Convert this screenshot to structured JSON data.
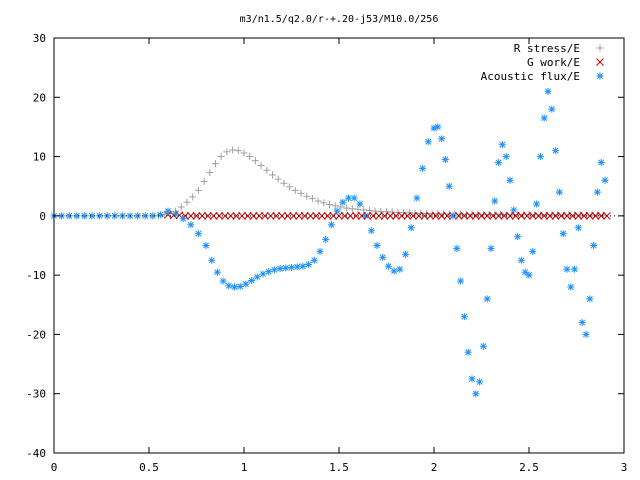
{
  "chart_data": {
    "type": "scatter",
    "title": "m3/n1.5/q2.0/r-+.20-j53/M10.0/256",
    "xlabel": "",
    "ylabel": "",
    "xlim": [
      0,
      3
    ],
    "ylim": [
      -40,
      30
    ],
    "x_ticks": [
      "0",
      "0.5",
      "1",
      "1.5",
      "2",
      "2.5",
      "3"
    ],
    "y_ticks": [
      "30",
      "20",
      "10",
      "0",
      "-10",
      "-20",
      "-30",
      "-40"
    ],
    "grid": false,
    "legend_position": "top-right",
    "series": [
      {
        "name": "R stress/E",
        "marker": "plus",
        "color": "#a0a0a0",
        "x": [
          0.55,
          0.58,
          0.61,
          0.64,
          0.67,
          0.7,
          0.73,
          0.76,
          0.79,
          0.82,
          0.85,
          0.88,
          0.91,
          0.94,
          0.97,
          1.0,
          1.03,
          1.06,
          1.09,
          1.12,
          1.15,
          1.18,
          1.21,
          1.24,
          1.27,
          1.3,
          1.33,
          1.36,
          1.39,
          1.42,
          1.45,
          1.48,
          1.51,
          1.54,
          1.57,
          1.6,
          1.63,
          1.66,
          1.69,
          1.72,
          1.75,
          1.78,
          1.81,
          1.84,
          1.87,
          1.9,
          1.93,
          1.96,
          1.99,
          2.02,
          2.05,
          2.08,
          2.11,
          2.14,
          2.17,
          2.2,
          2.23,
          2.26,
          2.29,
          2.32,
          2.35,
          2.38,
          2.41,
          2.44,
          2.47,
          2.5,
          2.53,
          2.56,
          2.59,
          2.62,
          2.65,
          2.68,
          2.71,
          2.74,
          2.77,
          2.8,
          2.83,
          2.86,
          2.89
        ],
        "y": [
          0.0,
          0.2,
          0.4,
          0.8,
          1.5,
          2.3,
          3.2,
          4.3,
          5.8,
          7.3,
          8.8,
          10.0,
          10.8,
          11.1,
          11.0,
          10.6,
          10.0,
          9.3,
          8.5,
          7.7,
          6.9,
          6.2,
          5.5,
          4.9,
          4.3,
          3.8,
          3.3,
          2.9,
          2.5,
          2.2,
          1.9,
          1.7,
          1.5,
          1.3,
          1.2,
          1.1,
          1.0,
          0.9,
          0.8,
          0.75,
          0.7,
          0.65,
          0.6,
          0.55,
          0.5,
          0.45,
          0.42,
          0.4,
          0.38,
          0.36,
          0.34,
          0.32,
          0.3,
          0.29,
          0.28,
          0.27,
          0.26,
          0.25,
          0.24,
          0.23,
          0.22,
          0.21,
          0.2,
          0.2,
          0.19,
          0.18,
          0.18,
          0.17,
          0.17,
          0.16,
          0.16,
          0.15,
          0.15,
          0.14,
          0.14,
          0.13,
          0.13,
          0.12,
          0.12
        ]
      },
      {
        "name": "G work/E",
        "marker": "cross",
        "color": "#cc0000",
        "x": [
          0.6,
          0.63,
          0.66,
          0.69,
          0.72,
          0.75,
          0.78,
          0.81,
          0.84,
          0.87,
          0.9,
          0.93,
          0.96,
          0.99,
          1.02,
          1.05,
          1.08,
          1.11,
          1.14,
          1.17,
          1.2,
          1.23,
          1.26,
          1.29,
          1.32,
          1.35,
          1.38,
          1.41,
          1.44,
          1.47,
          1.5,
          1.53,
          1.56,
          1.59,
          1.62,
          1.65,
          1.68,
          1.71,
          1.74,
          1.77,
          1.8,
          1.83,
          1.86,
          1.89,
          1.92,
          1.95,
          1.98,
          2.01,
          2.04,
          2.07,
          2.1,
          2.13,
          2.16,
          2.19,
          2.22,
          2.25,
          2.28,
          2.31,
          2.34,
          2.37,
          2.4,
          2.43,
          2.46,
          2.49,
          2.52,
          2.55,
          2.58,
          2.61,
          2.64,
          2.67,
          2.7,
          2.73,
          2.76,
          2.79,
          2.82,
          2.85,
          2.88,
          2.91
        ],
        "y": [
          0.2,
          0.1,
          0.1,
          0.0,
          0.0,
          0.0,
          0.0,
          0.0,
          0.0,
          0.0,
          0.0,
          0.0,
          0.0,
          0.0,
          0.0,
          0.0,
          0.0,
          0.0,
          0.0,
          0.0,
          0.0,
          0.0,
          0.0,
          0.0,
          0.0,
          0.0,
          0.0,
          0.0,
          0.0,
          0.0,
          0.0,
          0.0,
          0.0,
          0.0,
          0.0,
          0.0,
          0.0,
          0.0,
          0.0,
          0.0,
          0.0,
          0.0,
          0.0,
          0.0,
          0.0,
          0.0,
          0.0,
          0.0,
          0.0,
          0.0,
          0.0,
          0.0,
          0.0,
          0.0,
          0.0,
          0.0,
          0.0,
          0.0,
          0.0,
          0.0,
          0.0,
          0.0,
          0.0,
          0.0,
          0.0,
          0.0,
          0.0,
          0.0,
          0.0,
          0.0,
          0.0,
          0.0,
          0.0,
          0.0,
          0.0,
          0.0,
          0.0,
          0.0
        ]
      },
      {
        "name": "Acoustic flux/E",
        "marker": "star",
        "color": "#1e90ff",
        "x": [
          0.0,
          0.04,
          0.08,
          0.12,
          0.16,
          0.2,
          0.24,
          0.28,
          0.32,
          0.36,
          0.4,
          0.44,
          0.48,
          0.52,
          0.56,
          0.6,
          0.64,
          0.68,
          0.72,
          0.76,
          0.8,
          0.83,
          0.86,
          0.89,
          0.92,
          0.95,
          0.98,
          1.01,
          1.04,
          1.07,
          1.1,
          1.13,
          1.16,
          1.19,
          1.22,
          1.25,
          1.28,
          1.31,
          1.34,
          1.37,
          1.4,
          1.43,
          1.46,
          1.49,
          1.52,
          1.55,
          1.58,
          1.61,
          1.64,
          1.67,
          1.7,
          1.73,
          1.76,
          1.79,
          1.82,
          1.85,
          1.88,
          1.91,
          1.94,
          1.97,
          2.0,
          2.02,
          2.04,
          2.06,
          2.08,
          2.1,
          2.12,
          2.14,
          2.16,
          2.18,
          2.2,
          2.22,
          2.24,
          2.26,
          2.28,
          2.3,
          2.32,
          2.34,
          2.36,
          2.38,
          2.4,
          2.42,
          2.44,
          2.46,
          2.48,
          2.5,
          2.52,
          2.54,
          2.56,
          2.58,
          2.6,
          2.62,
          2.64,
          2.66,
          2.68,
          2.7,
          2.72,
          2.74,
          2.76,
          2.78,
          2.8,
          2.82,
          2.84,
          2.86,
          2.88,
          2.9
        ],
        "y": [
          0,
          0,
          0,
          0,
          0,
          0,
          0,
          0,
          0,
          0,
          0,
          0,
          0,
          0,
          0.2,
          0.8,
          0.3,
          -0.5,
          -1.5,
          -3.0,
          -5.0,
          -7.5,
          -9.5,
          -11.0,
          -11.8,
          -12.0,
          -11.9,
          -11.5,
          -10.9,
          -10.3,
          -9.8,
          -9.4,
          -9.1,
          -8.9,
          -8.8,
          -8.7,
          -8.6,
          -8.5,
          -8.2,
          -7.5,
          -6.0,
          -4.0,
          -1.5,
          0.8,
          2.3,
          3.0,
          3.0,
          2.0,
          0.0,
          -2.5,
          -5.0,
          -7.0,
          -8.5,
          -9.3,
          -9.0,
          -6.5,
          -2.0,
          3.0,
          8.0,
          12.5,
          14.8,
          15.0,
          13.0,
          9.5,
          5.0,
          0.0,
          -5.5,
          -11.0,
          -17.0,
          -23.0,
          -27.5,
          -30.0,
          -28.0,
          -22.0,
          -14.0,
          -5.5,
          2.5,
          9.0,
          12.0,
          10.0,
          6.0,
          1.0,
          -3.5,
          -7.5,
          -9.5,
          -10.0,
          -6.0,
          2.0,
          10.0,
          16.5,
          21.0,
          18.0,
          11.0,
          4.0,
          -3.0,
          -9.0,
          -12.0,
          -9.0,
          -2.0,
          -18.0,
          -20.0,
          -14.0,
          -5.0,
          4.0,
          9.0,
          6.0
        ]
      }
    ]
  }
}
